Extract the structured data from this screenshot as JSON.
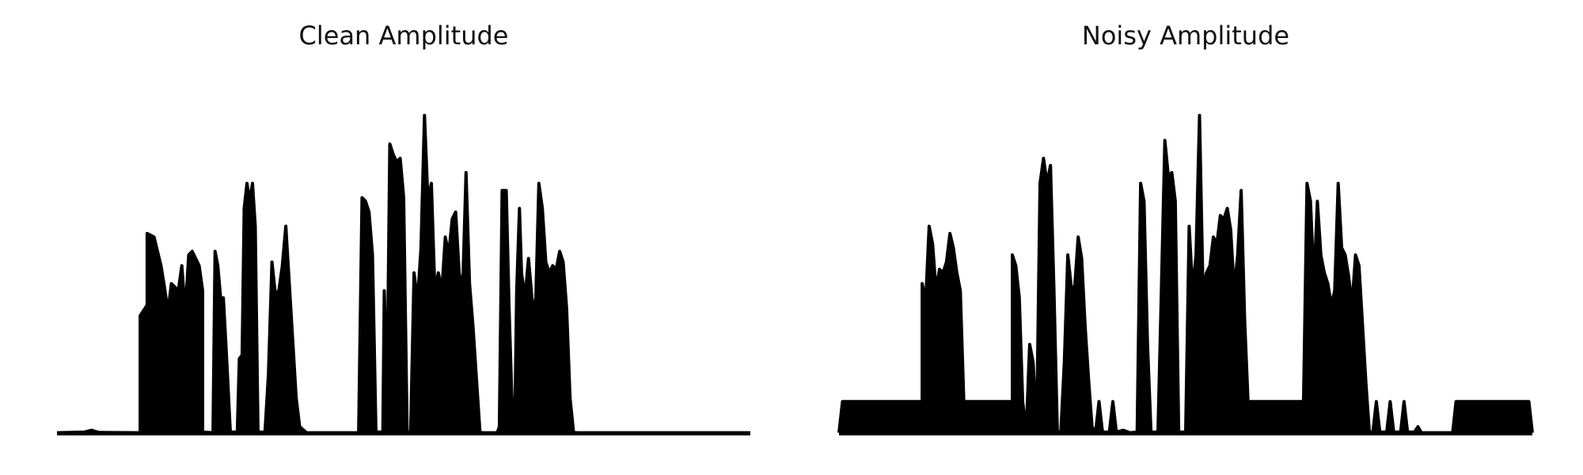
{
  "figure": {
    "background": "#ffffff",
    "line_color": "#000000"
  },
  "chart_data": [
    {
      "type": "area",
      "title": "Clean Amplitude",
      "axes_visible": false,
      "grid": false,
      "ylim": [
        0,
        1
      ],
      "envelope": [
        [
          0,
          0.003
        ],
        [
          0.04,
          0.005
        ],
        [
          0.05,
          0.01
        ],
        [
          0.06,
          0.004
        ],
        [
          0.12,
          0.003
        ],
        [
          0.12,
          0.33
        ],
        [
          0.13,
          0.36
        ],
        [
          0.13,
          0.56
        ],
        [
          0.14,
          0.55
        ],
        [
          0.15,
          0.47
        ],
        [
          0.155,
          0.41
        ],
        [
          0.16,
          0.34
        ],
        [
          0.165,
          0.42
        ],
        [
          0.17,
          0.41
        ],
        [
          0.175,
          0.4
        ],
        [
          0.18,
          0.47
        ],
        [
          0.185,
          0.34
        ],
        [
          0.19,
          0.5
        ],
        [
          0.195,
          0.51
        ],
        [
          0.2,
          0.49
        ],
        [
          0.205,
          0.47
        ],
        [
          0.21,
          0.4
        ],
        [
          0.21,
          0.005
        ],
        [
          0.225,
          0.003
        ],
        [
          0.228,
          0.51
        ],
        [
          0.232,
          0.47
        ],
        [
          0.236,
          0.38
        ],
        [
          0.24,
          0.38
        ],
        [
          0.245,
          0.2
        ],
        [
          0.25,
          0.005
        ],
        [
          0.26,
          0.005
        ],
        [
          0.263,
          0.21
        ],
        [
          0.267,
          0.22
        ],
        [
          0.27,
          0.63
        ],
        [
          0.274,
          0.7
        ],
        [
          0.278,
          0.65
        ],
        [
          0.282,
          0.7
        ],
        [
          0.286,
          0.58
        ],
        [
          0.29,
          0.005
        ],
        [
          0.3,
          0.005
        ],
        [
          0.305,
          0.17
        ],
        [
          0.31,
          0.48
        ],
        [
          0.315,
          0.39
        ],
        [
          0.32,
          0.4
        ],
        [
          0.325,
          0.47
        ],
        [
          0.33,
          0.58
        ],
        [
          0.335,
          0.42
        ],
        [
          0.345,
          0.1
        ],
        [
          0.35,
          0.02
        ],
        [
          0.36,
          0.003
        ],
        [
          0.435,
          0.003
        ],
        [
          0.44,
          0.66
        ],
        [
          0.445,
          0.65
        ],
        [
          0.45,
          0.62
        ],
        [
          0.455,
          0.5
        ],
        [
          0.46,
          0.005
        ],
        [
          0.47,
          0.005
        ],
        [
          0.472,
          0.4
        ],
        [
          0.476,
          0.1
        ],
        [
          0.48,
          0.81
        ],
        [
          0.485,
          0.78
        ],
        [
          0.49,
          0.76
        ],
        [
          0.495,
          0.77
        ],
        [
          0.5,
          0.66
        ],
        [
          0.505,
          0.005
        ],
        [
          0.51,
          0.005
        ],
        [
          0.515,
          0.45
        ],
        [
          0.52,
          0.37
        ],
        [
          0.525,
          0.52
        ],
        [
          0.53,
          0.89
        ],
        [
          0.535,
          0.65
        ],
        [
          0.54,
          0.7
        ],
        [
          0.545,
          0.4
        ],
        [
          0.55,
          0.45
        ],
        [
          0.555,
          0.4
        ],
        [
          0.56,
          0.55
        ],
        [
          0.565,
          0.5
        ],
        [
          0.57,
          0.6
        ],
        [
          0.575,
          0.62
        ],
        [
          0.58,
          0.45
        ],
        [
          0.585,
          0.4
        ],
        [
          0.59,
          0.73
        ],
        [
          0.595,
          0.42
        ],
        [
          0.6,
          0.3
        ],
        [
          0.61,
          0.005
        ],
        [
          0.615,
          0.003
        ],
        [
          0.635,
          0.003
        ],
        [
          0.638,
          0.02
        ],
        [
          0.642,
          0.68
        ],
        [
          0.648,
          0.68
        ],
        [
          0.652,
          0.35
        ],
        [
          0.656,
          0.1
        ],
        [
          0.66,
          0.005
        ],
        [
          0.663,
          0.4
        ],
        [
          0.667,
          0.63
        ],
        [
          0.67,
          0.45
        ],
        [
          0.675,
          0.38
        ],
        [
          0.68,
          0.49
        ],
        [
          0.685,
          0.38
        ],
        [
          0.69,
          0.33
        ],
        [
          0.695,
          0.7
        ],
        [
          0.7,
          0.63
        ],
        [
          0.705,
          0.48
        ],
        [
          0.71,
          0.45
        ],
        [
          0.715,
          0.47
        ],
        [
          0.72,
          0.46
        ],
        [
          0.725,
          0.51
        ],
        [
          0.73,
          0.48
        ],
        [
          0.735,
          0.35
        ],
        [
          0.74,
          0.1
        ],
        [
          0.745,
          0.005
        ],
        [
          0.75,
          0.003
        ],
        [
          1.0,
          0.003
        ]
      ]
    },
    {
      "type": "area",
      "title": "Noisy Amplitude",
      "axes_visible": false,
      "grid": false,
      "ylim": [
        0,
        1
      ],
      "envelope": [
        [
          0,
          0.003
        ],
        [
          0.005,
          0.09
        ],
        [
          0.1,
          0.09
        ],
        [
          0.12,
          0.09
        ],
        [
          0.12,
          0.42
        ],
        [
          0.125,
          0.37
        ],
        [
          0.13,
          0.58
        ],
        [
          0.135,
          0.53
        ],
        [
          0.14,
          0.4
        ],
        [
          0.145,
          0.46
        ],
        [
          0.15,
          0.45
        ],
        [
          0.155,
          0.48
        ],
        [
          0.16,
          0.56
        ],
        [
          0.165,
          0.52
        ],
        [
          0.17,
          0.45
        ],
        [
          0.175,
          0.4
        ],
        [
          0.18,
          0.09
        ],
        [
          0.24,
          0.09
        ],
        [
          0.25,
          0.09
        ],
        [
          0.25,
          0.5
        ],
        [
          0.255,
          0.47
        ],
        [
          0.26,
          0.38
        ],
        [
          0.265,
          0.09
        ],
        [
          0.27,
          0.005
        ],
        [
          0.275,
          0.25
        ],
        [
          0.28,
          0.2
        ],
        [
          0.285,
          0.005
        ],
        [
          0.29,
          0.7
        ],
        [
          0.295,
          0.77
        ],
        [
          0.3,
          0.7
        ],
        [
          0.305,
          0.75
        ],
        [
          0.31,
          0.4
        ],
        [
          0.315,
          0.005
        ],
        [
          0.32,
          0.005
        ],
        [
          0.325,
          0.2
        ],
        [
          0.33,
          0.5
        ],
        [
          0.335,
          0.41
        ],
        [
          0.34,
          0.41
        ],
        [
          0.345,
          0.55
        ],
        [
          0.35,
          0.49
        ],
        [
          0.355,
          0.3
        ],
        [
          0.36,
          0.15
        ],
        [
          0.365,
          0.02
        ],
        [
          0.37,
          0.003
        ],
        [
          0.375,
          0.09
        ],
        [
          0.38,
          0.005
        ],
        [
          0.39,
          0.005
        ],
        [
          0.395,
          0.09
        ],
        [
          0.4,
          0.005
        ],
        [
          0.41,
          0.01
        ],
        [
          0.42,
          0.003
        ],
        [
          0.43,
          0.005
        ],
        [
          0.435,
          0.7
        ],
        [
          0.44,
          0.65
        ],
        [
          0.445,
          0.25
        ],
        [
          0.45,
          0.005
        ],
        [
          0.46,
          0.005
        ],
        [
          0.465,
          0.4
        ],
        [
          0.47,
          0.82
        ],
        [
          0.475,
          0.72
        ],
        [
          0.48,
          0.73
        ],
        [
          0.485,
          0.65
        ],
        [
          0.49,
          0.005
        ],
        [
          0.5,
          0.005
        ],
        [
          0.505,
          0.58
        ],
        [
          0.51,
          0.4
        ],
        [
          0.515,
          0.5
        ],
        [
          0.52,
          0.89
        ],
        [
          0.525,
          0.4
        ],
        [
          0.53,
          0.45
        ],
        [
          0.535,
          0.47
        ],
        [
          0.54,
          0.55
        ],
        [
          0.545,
          0.53
        ],
        [
          0.55,
          0.61
        ],
        [
          0.555,
          0.6
        ],
        [
          0.56,
          0.63
        ],
        [
          0.565,
          0.57
        ],
        [
          0.57,
          0.4
        ],
        [
          0.575,
          0.5
        ],
        [
          0.58,
          0.68
        ],
        [
          0.585,
          0.32
        ],
        [
          0.59,
          0.09
        ],
        [
          0.65,
          0.09
        ],
        [
          0.67,
          0.09
        ],
        [
          0.675,
          0.7
        ],
        [
          0.68,
          0.65
        ],
        [
          0.685,
          0.42
        ],
        [
          0.69,
          0.65
        ],
        [
          0.695,
          0.5
        ],
        [
          0.7,
          0.45
        ],
        [
          0.705,
          0.42
        ],
        [
          0.71,
          0.36
        ],
        [
          0.715,
          0.4
        ],
        [
          0.72,
          0.7
        ],
        [
          0.725,
          0.52
        ],
        [
          0.73,
          0.5
        ],
        [
          0.735,
          0.44
        ],
        [
          0.74,
          0.36
        ],
        [
          0.745,
          0.5
        ],
        [
          0.75,
          0.47
        ],
        [
          0.76,
          0.14
        ],
        [
          0.765,
          0.005
        ],
        [
          0.77,
          0.005
        ],
        [
          0.775,
          0.09
        ],
        [
          0.78,
          0.005
        ],
        [
          0.79,
          0.005
        ],
        [
          0.795,
          0.09
        ],
        [
          0.8,
          0.005
        ],
        [
          0.81,
          0.005
        ],
        [
          0.815,
          0.09
        ],
        [
          0.82,
          0.005
        ],
        [
          0.83,
          0.005
        ],
        [
          0.835,
          0.02
        ],
        [
          0.84,
          0.003
        ],
        [
          0.885,
          0.003
        ],
        [
          0.89,
          0.09
        ],
        [
          0.995,
          0.09
        ],
        [
          1.0,
          0.003
        ]
      ]
    }
  ]
}
